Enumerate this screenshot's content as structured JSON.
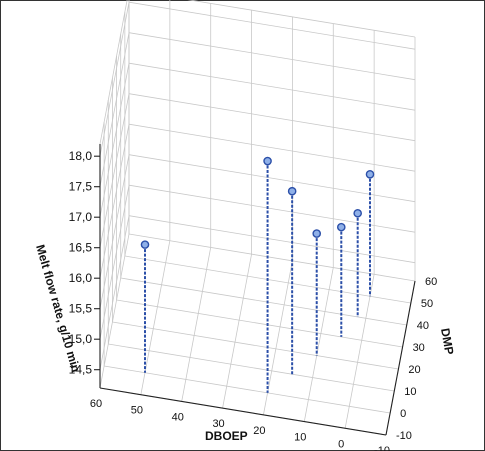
{
  "chart_data": {
    "type": "scatter",
    "subtype": "3d-stem",
    "title": "",
    "axes": {
      "z": {
        "label": "Melt flow rate, g/10 min",
        "range": [
          14.2,
          18.2
        ],
        "ticks": [
          "14,5",
          "15,0",
          "15,5",
          "16,0",
          "16,5",
          "17,0",
          "17,5",
          "18,0"
        ]
      },
      "x": {
        "label": "DBOEP",
        "range": [
          -10,
          60
        ],
        "ticks": [
          "60",
          "50",
          "40",
          "30",
          "20",
          "10",
          "0",
          "-10"
        ]
      },
      "y": {
        "label": "DMP",
        "range": [
          -10,
          60
        ],
        "ticks": [
          "60",
          "50",
          "40",
          "30",
          "20",
          "10",
          "0",
          "-10"
        ]
      }
    },
    "points": [
      {
        "DBOEP": 50,
        "DMP": 0,
        "melt_flow_rate": 16.3
      },
      {
        "DBOEP": 20,
        "DMP": 0,
        "melt_flow_rate": 18.0
      },
      {
        "DBOEP": 15,
        "DMP": 10,
        "melt_flow_rate": 17.2
      },
      {
        "DBOEP": 10,
        "DMP": 20,
        "melt_flow_rate": 16.2
      },
      {
        "DBOEP": 5,
        "DMP": 30,
        "melt_flow_rate": 16.0
      },
      {
        "DBOEP": 2,
        "DMP": 40,
        "melt_flow_rate": 15.9
      },
      {
        "DBOEP": 0,
        "DMP": 50,
        "melt_flow_rate": 16.2
      }
    ],
    "grid": true,
    "marker_color": "#2b4fa8",
    "stem_color": "#2b4fa8"
  }
}
